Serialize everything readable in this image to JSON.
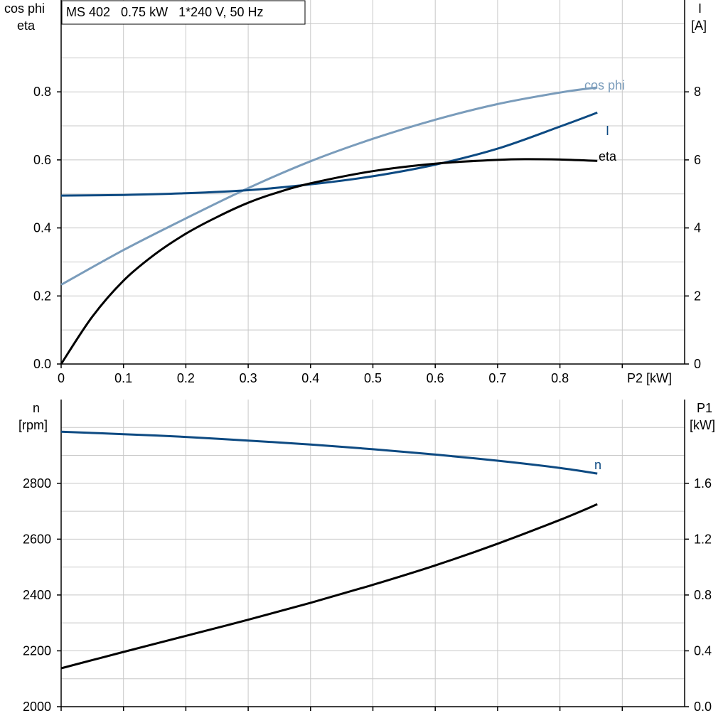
{
  "info_box": {
    "text": "MS 402   0.75 kW   1*240 V, 50 Hz"
  },
  "colors": {
    "cosphi": "#7a9cbb",
    "current": "#0d4a82",
    "eta": "#000000",
    "speed": "#0d4a82",
    "p1": "#000000",
    "grid": "#c8c8c8"
  },
  "chart_data": [
    {
      "type": "line",
      "title": "MS 402   0.75 kW   1*240 V, 50 Hz",
      "xlabel": "P2 [kW]",
      "xlim": [
        0,
        1.0
      ],
      "x_ticks": [
        "0",
        "0.1",
        "0.2",
        "0.3",
        "0.4",
        "0.5",
        "0.6",
        "0.7",
        "0.8"
      ],
      "ylabel_left": [
        "cos phi",
        "eta"
      ],
      "ylim_left": [
        0,
        1.07
      ],
      "y_ticks_left": [
        "0.0",
        "0.2",
        "0.4",
        "0.6",
        "0.8"
      ],
      "ylabel_right": [
        "I",
        "[A]"
      ],
      "ylim_right": [
        0,
        10.7
      ],
      "y_ticks_right": [
        "0",
        "2",
        "4",
        "6",
        "8"
      ],
      "grid": true,
      "series": [
        {
          "name": "cos phi",
          "axis": "left",
          "x": [
            0,
            0.1,
            0.2,
            0.3,
            0.4,
            0.5,
            0.6,
            0.7,
            0.8,
            0.86
          ],
          "y": [
            0.233,
            0.335,
            0.428,
            0.517,
            0.596,
            0.662,
            0.718,
            0.764,
            0.798,
            0.813
          ]
        },
        {
          "name": "I",
          "axis": "right",
          "x": [
            0,
            0.1,
            0.2,
            0.3,
            0.4,
            0.5,
            0.6,
            0.7,
            0.8,
            0.86
          ],
          "y": [
            4.95,
            4.97,
            5.02,
            5.11,
            5.28,
            5.52,
            5.86,
            6.33,
            6.98,
            7.39
          ]
        },
        {
          "name": "eta",
          "axis": "left",
          "x": [
            0,
            0.05,
            0.1,
            0.15,
            0.2,
            0.25,
            0.3,
            0.35,
            0.4,
            0.5,
            0.6,
            0.7,
            0.75,
            0.8,
            0.86
          ],
          "y": [
            0.0,
            0.139,
            0.245,
            0.322,
            0.383,
            0.432,
            0.474,
            0.506,
            0.531,
            0.567,
            0.589,
            0.6,
            0.602,
            0.601,
            0.597
          ]
        }
      ]
    },
    {
      "type": "line",
      "xlabel": "",
      "xlim": [
        0,
        1.0
      ],
      "ylabel_left": [
        "n",
        "[rpm]"
      ],
      "ylim_left": [
        2000,
        3100
      ],
      "y_ticks_left": [
        "2000",
        "2200",
        "2400",
        "2600",
        "2800"
      ],
      "ylabel_right": [
        "P1",
        "[kW]"
      ],
      "ylim_right": [
        0,
        2.2
      ],
      "y_ticks_right": [
        "0.0",
        "0.4",
        "0.8",
        "1.2",
        "1.6"
      ],
      "grid": true,
      "series": [
        {
          "name": "n",
          "axis": "left",
          "x": [
            0,
            0.1,
            0.2,
            0.3,
            0.4,
            0.5,
            0.6,
            0.7,
            0.8,
            0.86
          ],
          "y": [
            2985,
            2976,
            2966,
            2953,
            2939,
            2922,
            2903,
            2881,
            2855,
            2835
          ]
        },
        {
          "name": "",
          "axis": "right",
          "x": [
            0,
            0.1,
            0.2,
            0.3,
            0.4,
            0.5,
            0.6,
            0.7,
            0.8,
            0.86
          ],
          "y": [
            0.275,
            0.392,
            0.507,
            0.623,
            0.744,
            0.873,
            1.012,
            1.167,
            1.338,
            1.45
          ]
        }
      ]
    }
  ]
}
